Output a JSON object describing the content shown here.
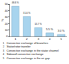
{
  "chart_data": {
    "type": "bar",
    "categories": [
      "1",
      "2",
      "3",
      "4",
      "5"
    ],
    "values": [
      46.6,
      31.0,
      13.7,
      5.5,
      3.0
    ],
    "value_labels": [
      "46.6 %",
      "31.0 %",
      "13.7 %",
      "5.5 %",
      "3.0 %"
    ],
    "data_labels": true,
    "color": "#a8d4ee",
    "y_label": "%",
    "ylim": [
      0,
      50
    ],
    "yticks": [
      0,
      10,
      20,
      30,
      40,
      50
    ],
    "grid": false,
    "annotations": [
      "1   Convective exchange of branches",
      "2   Stator/rotor transfer",
      "3   Convective exchange in the stator channel",
      "4   Sidewall convective exchange",
      "5   Convective exchange in the air gap"
    ]
  }
}
